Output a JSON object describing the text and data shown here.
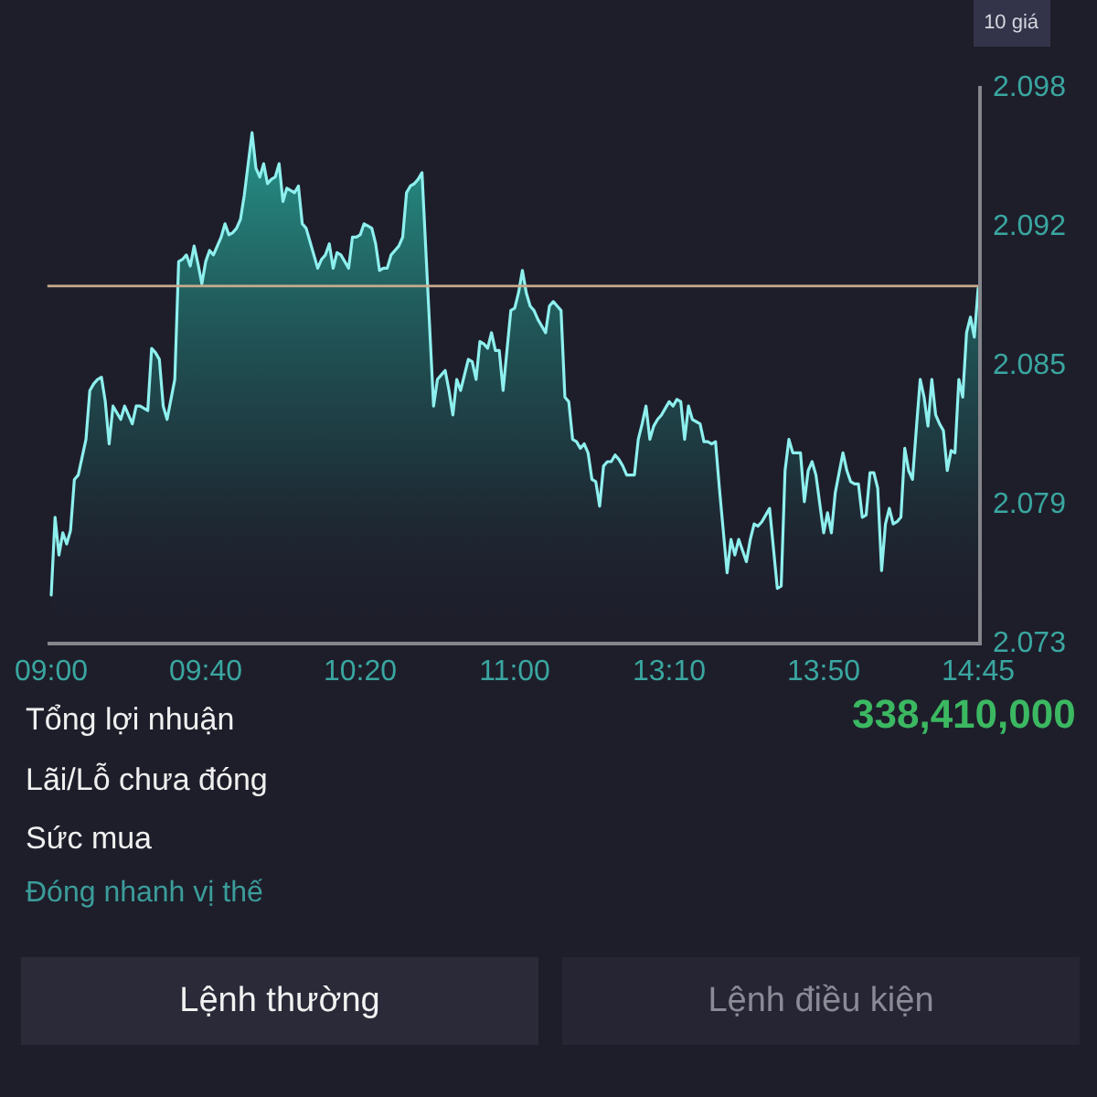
{
  "chart_data": {
    "type": "area",
    "categories": [
      "09:00",
      null,
      null,
      null,
      null,
      null,
      null,
      null,
      null,
      null,
      null,
      null,
      null,
      null,
      null,
      null,
      null,
      null,
      null,
      null,
      null,
      null,
      null,
      null,
      null,
      null,
      null,
      null,
      null,
      null,
      null,
      null,
      null,
      null,
      null,
      null,
      null,
      null,
      null,
      null,
      "09:40",
      null,
      null,
      null,
      null,
      null,
      null,
      null,
      null,
      null,
      null,
      null,
      null,
      null,
      null,
      null,
      null,
      null,
      null,
      null,
      null,
      null,
      null,
      null,
      null,
      null,
      null,
      null,
      null,
      null,
      null,
      null,
      null,
      null,
      null,
      null,
      null,
      null,
      null,
      null,
      "10:20",
      null,
      null,
      null,
      null,
      null,
      null,
      null,
      null,
      null,
      null,
      null,
      null,
      null,
      null,
      null,
      null,
      null,
      null,
      null,
      null,
      null,
      null,
      null,
      null,
      null,
      null,
      null,
      null,
      null,
      null,
      null,
      null,
      null,
      null,
      null,
      null,
      null,
      null,
      null,
      "11:00",
      null,
      null,
      null,
      null,
      null,
      null,
      null,
      null,
      null,
      null,
      null,
      null,
      null,
      null,
      null,
      null,
      null,
      null,
      null,
      null,
      null,
      null,
      null,
      null,
      null,
      null,
      null,
      null,
      null,
      null,
      null,
      null,
      null,
      null,
      null,
      null,
      null,
      null,
      null,
      "13:10",
      null,
      null,
      null,
      null,
      null,
      null,
      null,
      null,
      null,
      null,
      null,
      null,
      null,
      null,
      null,
      null,
      null,
      null,
      null,
      null,
      null,
      null,
      null,
      null,
      null,
      null,
      null,
      null,
      null,
      null,
      null,
      null,
      null,
      null,
      null,
      null,
      null,
      null,
      null,
      "13:50",
      null,
      null,
      null,
      null,
      null,
      null,
      null,
      null,
      null,
      null,
      null,
      null,
      null,
      null,
      null,
      null,
      null,
      null,
      null,
      null,
      null,
      null,
      null,
      null,
      null,
      null,
      null,
      null,
      null,
      null,
      null,
      null,
      null,
      null,
      null,
      null,
      null,
      null,
      null,
      "14:45"
    ],
    "values": [
      2.0751,
      2.0786,
      2.0769,
      2.0779,
      2.0774,
      2.078,
      2.0803,
      2.0805,
      2.0813,
      2.0821,
      2.0843,
      2.0846,
      2.0848,
      2.0849,
      2.0838,
      2.0819,
      2.0836,
      2.0833,
      2.083,
      2.0836,
      2.0832,
      2.0828,
      2.0836,
      2.0836,
      2.0835,
      2.0834,
      2.0862,
      2.086,
      2.0857,
      2.0836,
      2.083,
      2.0839,
      2.0848,
      2.0901,
      2.0902,
      2.0904,
      2.0899,
      2.0908,
      2.09,
      2.0891,
      2.0901,
      2.0906,
      2.0904,
      2.0908,
      2.0912,
      2.0918,
      2.0913,
      2.0914,
      2.0916,
      2.092,
      2.0931,
      2.0945,
      2.0959,
      2.0943,
      2.0939,
      2.0945,
      2.0936,
      2.0938,
      2.0939,
      2.0945,
      2.0928,
      2.0934,
      2.0933,
      2.0932,
      2.0935,
      2.0918,
      2.0916,
      2.091,
      2.0904,
      2.0898,
      2.0902,
      2.0904,
      2.0909,
      2.0898,
      2.0905,
      2.0904,
      2.0901,
      2.0898,
      2.0912,
      2.0912,
      2.0913,
      2.0918,
      2.0917,
      2.0916,
      2.0909,
      2.0897,
      2.0898,
      2.0898,
      2.0904,
      2.0906,
      2.0908,
      2.0912,
      2.0932,
      2.0935,
      2.0936,
      2.0938,
      2.0941,
      2.0906,
      2.0871,
      2.0836,
      2.0848,
      2.085,
      2.0852,
      2.0843,
      2.0832,
      2.0848,
      2.0843,
      2.085,
      2.0857,
      2.0856,
      2.0848,
      2.0865,
      2.0864,
      2.0862,
      2.0869,
      2.0861,
      2.0861,
      2.0843,
      2.0861,
      2.0879,
      2.088,
      2.0887,
      2.0897,
      2.0887,
      2.0881,
      2.0879,
      2.0875,
      2.0872,
      2.0869,
      2.0881,
      2.0883,
      2.0881,
      2.0879,
      2.084,
      2.0838,
      2.0821,
      2.082,
      2.0817,
      2.0819,
      2.0815,
      2.0803,
      2.0802,
      2.0791,
      2.0809,
      2.0811,
      2.0811,
      2.0814,
      2.0812,
      2.0809,
      2.0805,
      2.0805,
      2.0805,
      2.0821,
      2.0828,
      2.0836,
      2.0821,
      2.0827,
      2.083,
      2.0832,
      2.0835,
      2.0838,
      2.0836,
      2.0839,
      2.0838,
      2.0821,
      2.0836,
      2.083,
      2.0829,
      2.0828,
      2.082,
      2.082,
      2.0819,
      2.082,
      2.0799,
      2.078,
      2.0761,
      2.0776,
      2.0769,
      2.0776,
      2.0771,
      2.0766,
      2.0776,
      2.0783,
      2.0782,
      2.0784,
      2.0787,
      2.079,
      2.0772,
      2.0754,
      2.0755,
      2.0807,
      2.0821,
      2.0815,
      2.0815,
      2.0815,
      2.0793,
      2.0807,
      2.0811,
      2.0805,
      2.0792,
      2.0779,
      2.0788,
      2.0779,
      2.0797,
      2.0806,
      2.0815,
      2.0807,
      2.0802,
      2.0801,
      2.0801,
      2.0786,
      2.0787,
      2.0806,
      2.0806,
      2.0799,
      2.0762,
      2.0783,
      2.079,
      2.0783,
      2.0784,
      2.0786,
      2.0817,
      2.0807,
      2.0803,
      2.0826,
      2.0848,
      2.084,
      2.0827,
      2.0848,
      2.0832,
      2.0828,
      2.0825,
      2.0807,
      2.0816,
      2.0815,
      2.0848,
      2.084,
      2.0869,
      2.0876,
      2.0867,
      2.0889
    ],
    "color": "#8ef0ee",
    "ylim": [
      2.073,
      2.098
    ],
    "yticks": [
      2.073,
      {
        "value": 2.07925,
        "label": "2.079"
      },
      {
        "value": 2.0855,
        "label": "2.085"
      },
      {
        "value": 2.09175,
        "label": "2.092"
      },
      2.098
    ],
    "ref_lines": [
      {
        "axis": "y",
        "value": 2.089,
        "color": "#c9ab8e"
      }
    ],
    "annotations": [
      "10 giá",
      "Tổng lợi nhuận",
      "338,410,000",
      "Lãi/Lỗ chưa đóng",
      "Sức mua",
      "Đóng nhanh vị thế",
      "Lệnh thường",
      "Lệnh điều kiện"
    ]
  }
}
